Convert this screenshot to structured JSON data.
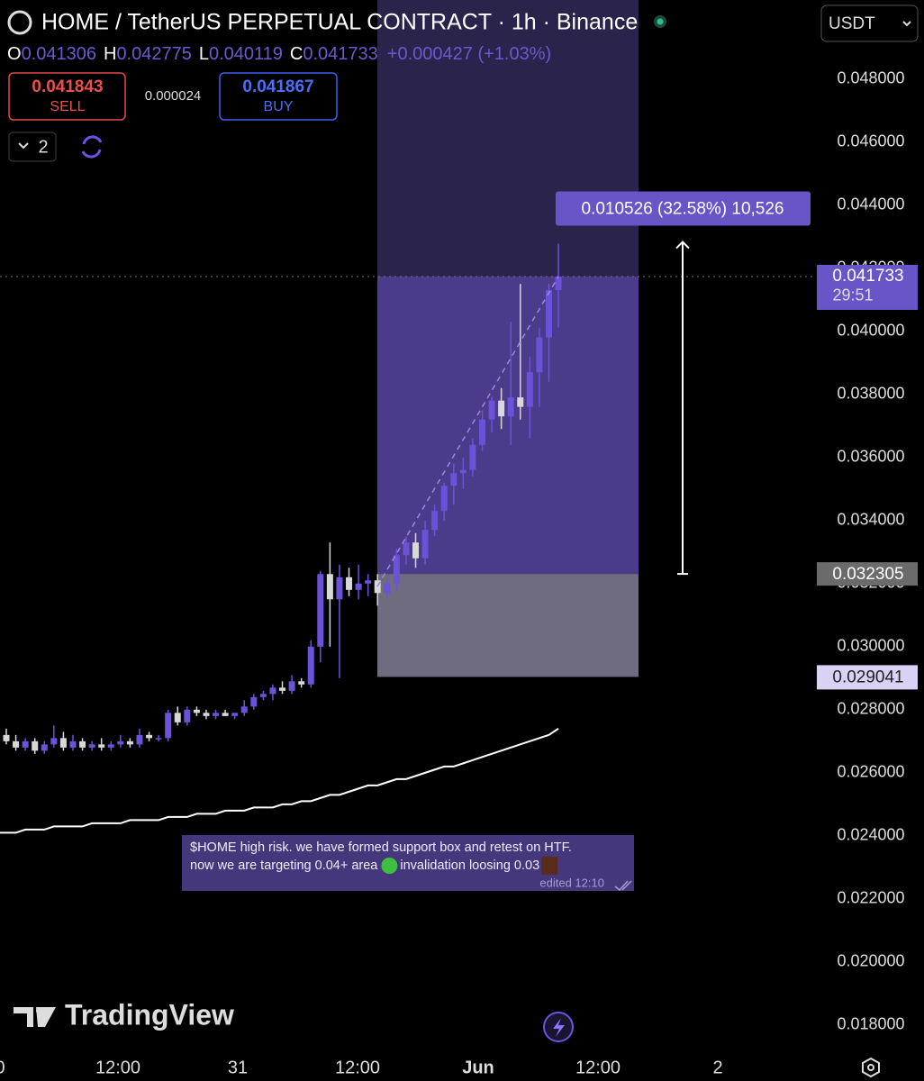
{
  "header": {
    "title": "HOME / TetherUS PERPETUAL CONTRACT · 1h · Binance",
    "o": "O",
    "h": "H",
    "l": "L",
    "c": "C",
    "change": "+0.000427 (+1.03%)",
    "currency": "USDT"
  },
  "trade": {
    "sell_price": 0.041843,
    "sell": "SELL",
    "spread": 2.4e-05,
    "buy_price": 0.041867,
    "buy": "BUY",
    "count": "2"
  },
  "chart_data": {
    "type": "candlestick",
    "open": [
      0.0272,
      0.027,
      0.0268,
      0.027,
      0.0267,
      0.0269,
      0.0271,
      0.0268,
      0.027,
      0.0268,
      0.0269,
      0.0268,
      0.0269,
      0.027,
      0.0269,
      0.0272,
      0.0271,
      0.0271,
      0.0279,
      0.0276,
      0.028,
      0.0279,
      0.0278,
      0.0279,
      0.0278,
      0.0279,
      0.0281,
      0.0284,
      0.0285,
      0.0287,
      0.0286,
      0.0289,
      0.0288,
      0.03,
      0.0323,
      0.0315,
      0.0322,
      0.0318,
      0.032,
      0.0321,
      0.0317,
      0.032,
      0.0329,
      0.0333,
      0.0328,
      0.0337,
      0.0343,
      0.0351,
      0.0355,
      0.0356,
      0.0364,
      0.0372,
      0.0378,
      0.0373,
      0.0379,
      0.0376,
      0.0387,
      0.0398,
      0.041306
    ],
    "high": [
      0.0274,
      0.0272,
      0.0271,
      0.0271,
      0.027,
      0.0275,
      0.0273,
      0.0272,
      0.0271,
      0.027,
      0.0271,
      0.027,
      0.0272,
      0.0271,
      0.0274,
      0.0273,
      0.0272,
      0.028,
      0.0281,
      0.0281,
      0.0281,
      0.028,
      0.028,
      0.028,
      0.0279,
      0.0283,
      0.0285,
      0.0286,
      0.0288,
      0.0289,
      0.0291,
      0.029,
      0.0302,
      0.0324,
      0.0333,
      0.0326,
      0.0325,
      0.0326,
      0.0323,
      0.0323,
      0.0322,
      0.0331,
      0.0335,
      0.0336,
      0.034,
      0.0345,
      0.0352,
      0.0358,
      0.036,
      0.0366,
      0.0375,
      0.0379,
      0.0382,
      0.0403,
      0.0415,
      0.0392,
      0.0401,
      0.0415,
      0.042775
    ],
    "low": [
      0.0269,
      0.0267,
      0.0267,
      0.0266,
      0.0266,
      0.0268,
      0.0267,
      0.0267,
      0.0267,
      0.0267,
      0.0267,
      0.0267,
      0.0268,
      0.0268,
      0.0268,
      0.027,
      0.027,
      0.027,
      0.0275,
      0.0275,
      0.0278,
      0.0277,
      0.0277,
      0.0278,
      0.0277,
      0.0278,
      0.028,
      0.0283,
      0.0283,
      0.0285,
      0.0285,
      0.0287,
      0.0287,
      0.0295,
      0.03,
      0.029,
      0.0316,
      0.0315,
      0.0316,
      0.0313,
      0.0315,
      0.0318,
      0.0326,
      0.0325,
      0.0326,
      0.0335,
      0.034,
      0.0345,
      0.035,
      0.0354,
      0.0362,
      0.0368,
      0.0369,
      0.0364,
      0.0372,
      0.0366,
      0.0376,
      0.0384,
      0.040119
    ],
    "close": [
      0.027,
      0.0268,
      0.027,
      0.0267,
      0.0269,
      0.0271,
      0.0268,
      0.027,
      0.0268,
      0.0269,
      0.0268,
      0.0269,
      0.027,
      0.0269,
      0.0272,
      0.0271,
      0.0271,
      0.0279,
      0.0276,
      0.028,
      0.0279,
      0.0278,
      0.0279,
      0.0278,
      0.0279,
      0.0281,
      0.0284,
      0.0285,
      0.0287,
      0.0286,
      0.0289,
      0.0288,
      0.03,
      0.0323,
      0.0315,
      0.0322,
      0.0318,
      0.032,
      0.0321,
      0.0317,
      0.032,
      0.0329,
      0.0333,
      0.0328,
      0.0337,
      0.0343,
      0.0351,
      0.0355,
      0.0356,
      0.0364,
      0.0372,
      0.0378,
      0.0373,
      0.0379,
      0.0376,
      0.0387,
      0.0398,
      0.0413,
      0.041733
    ],
    "ma": [
      0.0241,
      0.0241,
      0.0242,
      0.0242,
      0.0242,
      0.0243,
      0.0243,
      0.0243,
      0.0243,
      0.0244,
      0.0244,
      0.0244,
      0.0244,
      0.0245,
      0.0245,
      0.0245,
      0.0245,
      0.0246,
      0.0246,
      0.0246,
      0.0247,
      0.0247,
      0.0247,
      0.0248,
      0.0248,
      0.0248,
      0.0249,
      0.0249,
      0.0249,
      0.025,
      0.025,
      0.0251,
      0.0251,
      0.0252,
      0.0253,
      0.0253,
      0.0254,
      0.0255,
      0.0256,
      0.0256,
      0.0257,
      0.0258,
      0.0258,
      0.0259,
      0.026,
      0.0261,
      0.0262,
      0.0262,
      0.0263,
      0.0264,
      0.0265,
      0.0266,
      0.0267,
      0.0268,
      0.0269,
      0.027,
      0.0271,
      0.0272,
      0.0274
    ],
    "up_color": "#6c52d9",
    "down_color": "#d8d8d8",
    "ma_color": "#ffffff",
    "ylim": [
      0.0172,
      0.0505
    ],
    "yticks": [
      {
        "value": 0.018,
        "label": "0.018000"
      },
      {
        "value": 0.02,
        "label": "0.020000"
      },
      {
        "value": 0.022,
        "label": "0.022000"
      },
      {
        "value": 0.024,
        "label": "0.024000"
      },
      {
        "value": 0.026,
        "label": "0.026000"
      },
      {
        "value": 0.028,
        "label": "0.028000"
      },
      {
        "value": 0.03,
        "label": "0.030000"
      },
      {
        "value": 0.032,
        "label": "0.032000"
      },
      {
        "value": 0.034,
        "label": "0.034000"
      },
      {
        "value": 0.036,
        "label": "0.036000"
      },
      {
        "value": 0.038,
        "label": "0.038000"
      },
      {
        "value": 0.04,
        "label": "0.040000"
      },
      {
        "value": 0.042,
        "label": "0.042000"
      },
      {
        "value": 0.044,
        "label": "0.044000"
      },
      {
        "value": 0.046,
        "label": "0.046000"
      },
      {
        "value": 0.048,
        "label": "0.048000"
      }
    ],
    "x_labels": [
      "0",
      "12:00",
      "31",
      "12:00",
      "Jun",
      "12:00",
      "2"
    ],
    "countdown": "29:51",
    "position": {
      "entry": 0.032305,
      "stop": 0.029041,
      "change": 0.010526,
      "label": "0.010526 (32.58%) 10,526"
    }
  },
  "note": {
    "line1": "$HOME high risk. we have formed support box and retest on HTF.",
    "line2a": "now we are targeting 0.04+ area",
    "line2b": "invalidation loosing 0.03",
    "edited": "edited 12:10"
  },
  "brand": "TradingView"
}
